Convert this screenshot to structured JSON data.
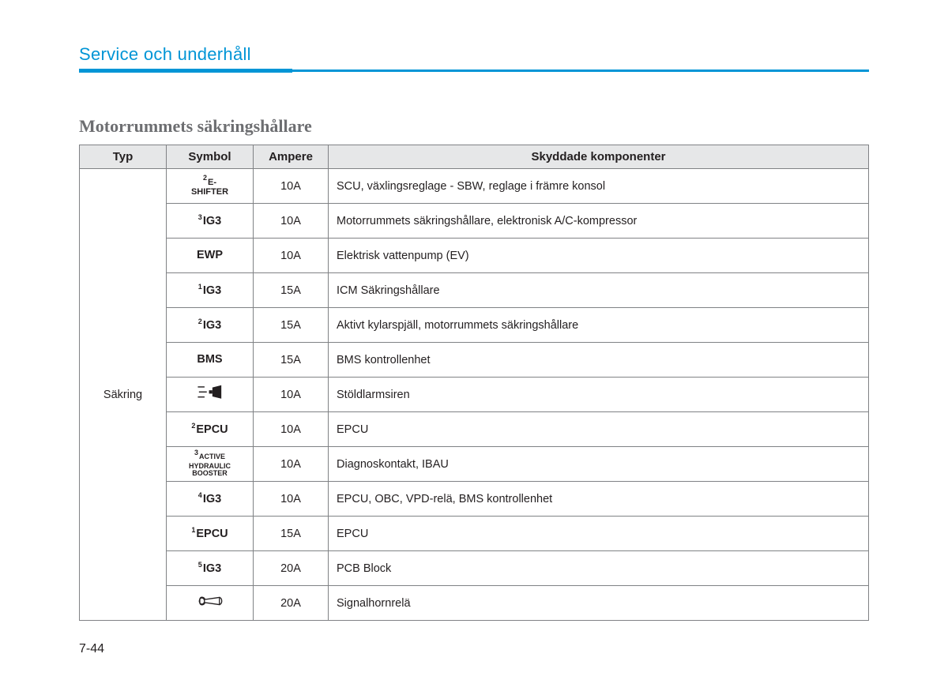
{
  "section_title": "Service och underhåll",
  "subheading": "Motorrummets säkringshållare",
  "page_number": "7-44",
  "columns": {
    "typ": "Typ",
    "symbol": "Symbol",
    "ampere": "Ampere",
    "desc": "Skyddade komponenter"
  },
  "typ_label": "Säkring",
  "rows": [
    {
      "symbol": {
        "sup": "2",
        "text": "E-",
        "line2": "SHIFTER"
      },
      "ampere": "10A",
      "desc": "SCU, växlingsreglage - SBW, reglage i främre konsol"
    },
    {
      "symbol": {
        "sup": "3",
        "text": "IG3"
      },
      "ampere": "10A",
      "desc": "Motorrummets säkringshållare, elektronisk A/C-kompressor"
    },
    {
      "symbol": {
        "text": "EWP"
      },
      "ampere": "10A",
      "desc": "Elektrisk vattenpump (EV)"
    },
    {
      "symbol": {
        "sup": "1",
        "text": "IG3"
      },
      "ampere": "15A",
      "desc": "ICM Säkringshållare"
    },
    {
      "symbol": {
        "sup": "2",
        "text": "IG3"
      },
      "ampere": "15A",
      "desc": "Aktivt kylarspjäll, motorrummets säkringshållare"
    },
    {
      "symbol": {
        "text": "BMS"
      },
      "ampere": "15A",
      "desc": "BMS kontrollenhet"
    },
    {
      "symbol": {
        "icon": "siren"
      },
      "ampere": "10A",
      "desc": "Stöldlarmsiren"
    },
    {
      "symbol": {
        "sup": "2",
        "text": "EPCU"
      },
      "ampere": "10A",
      "desc": "EPCU"
    },
    {
      "symbol": {
        "sup": "3",
        "tiny": "ACTIVE HYDRAULIC BOOSTER"
      },
      "ampere": "10A",
      "desc": "Diagnoskontakt, IBAU"
    },
    {
      "symbol": {
        "sup": "4",
        "text": "IG3"
      },
      "ampere": "10A",
      "desc": "EPCU, OBC, VPD-relä, BMS kontrollenhet"
    },
    {
      "symbol": {
        "sup": "1",
        "text": "EPCU"
      },
      "ampere": "15A",
      "desc": "EPCU"
    },
    {
      "symbol": {
        "sup": "5",
        "text": "IG3"
      },
      "ampere": "20A",
      "desc": "PCB Block"
    },
    {
      "symbol": {
        "icon": "horn"
      },
      "ampere": "20A",
      "desc": "Signalhornrelä"
    }
  ],
  "colors": {
    "accent": "#0095d6",
    "header_bg": "#e6e7e8",
    "border": "#808285",
    "text": "#231f20",
    "subheading": "#6d6e71"
  }
}
